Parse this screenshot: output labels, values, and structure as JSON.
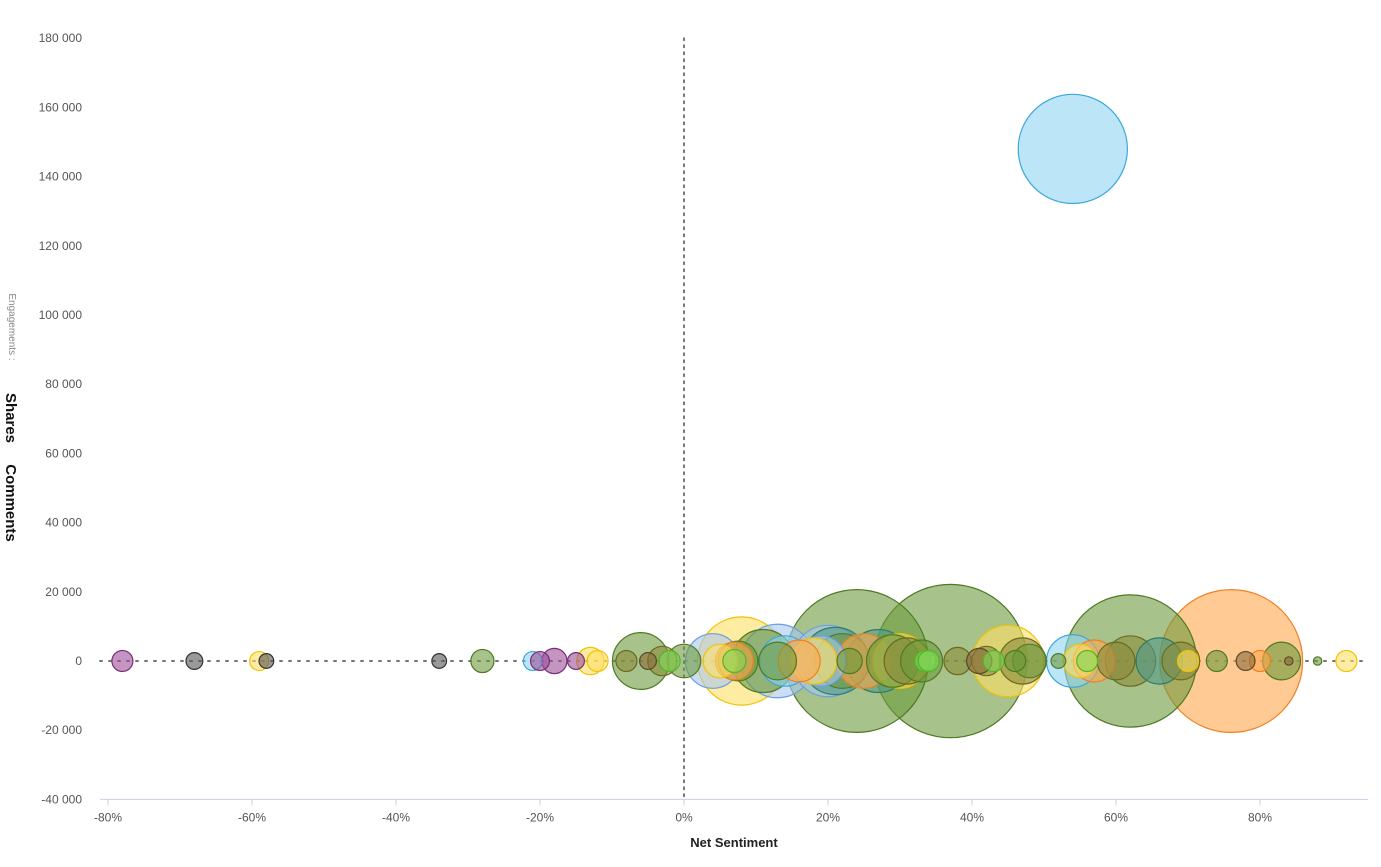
{
  "chart_data": {
    "type": "scatter",
    "subtype": "bubble",
    "title": "",
    "xlabel": "Net Sentiment",
    "ylabel_prefix": "Engagements :",
    "ylabel_options": [
      "Shares",
      "Comments"
    ],
    "xlim": [
      -80,
      95
    ],
    "ylim": [
      -40000,
      180000
    ],
    "x_ticks": [
      -80,
      -60,
      -40,
      -20,
      0,
      20,
      40,
      60,
      80
    ],
    "x_tick_labels": [
      "-80%",
      "-60%",
      "-40%",
      "-20%",
      "0%",
      "20%",
      "40%",
      "60%",
      "80%"
    ],
    "y_ticks": [
      180000,
      160000,
      140000,
      120000,
      100000,
      80000,
      60000,
      40000,
      20000,
      0,
      -20000,
      -40000
    ],
    "y_tick_labels": [
      "180 000",
      "160 000",
      "140 000",
      "120 000",
      "100 000",
      "80 000",
      "60 000",
      "40 000",
      "20 000",
      "0",
      "-20 000",
      "-40 000"
    ],
    "grid": false,
    "reference_lines": {
      "x": 0,
      "y": 0,
      "style": "dotted"
    },
    "colors": {
      "blue": "#8fd3f4",
      "blue_stroke": "#3aa8dd",
      "green": "#6d9a3c",
      "green_stroke": "#4e7a22",
      "orange": "#ffa64d",
      "orange_stroke": "#f08020",
      "yellow": "#ffe066",
      "yellow_stroke": "#f2c200",
      "purple": "#9b4f96",
      "purple_stroke": "#7a2d78",
      "gray": "#555555",
      "gray_stroke": "#333333",
      "lightblue": "#a8c8f0",
      "lightblue_stroke": "#6a9fe0",
      "teal": "#4f9a8a",
      "teal_stroke": "#2f7a6a",
      "lime": "#7ed957",
      "lime_stroke": "#52b52a",
      "olive": "#8a8a3a",
      "olive_stroke": "#6a6a20",
      "brown": "#8a6a3a",
      "brown_stroke": "#5a4a2a"
    },
    "bubbles": [
      {
        "x": -78,
        "y": 0,
        "size": 1,
        "color": "purple"
      },
      {
        "x": -68,
        "y": 0,
        "size": 0.8,
        "color": "gray"
      },
      {
        "x": -59,
        "y": 0,
        "size": 0.9,
        "color": "yellow"
      },
      {
        "x": -58,
        "y": 0,
        "size": 0.7,
        "color": "gray"
      },
      {
        "x": -34,
        "y": 0,
        "size": 0.7,
        "color": "gray"
      },
      {
        "x": -28,
        "y": 0,
        "size": 1.1,
        "color": "green"
      },
      {
        "x": -21,
        "y": 0,
        "size": 0.9,
        "color": "blue"
      },
      {
        "x": -20,
        "y": 0,
        "size": 0.9,
        "color": "purple"
      },
      {
        "x": -18,
        "y": 0,
        "size": 1.2,
        "color": "purple"
      },
      {
        "x": -15,
        "y": 0,
        "size": 0.8,
        "color": "purple"
      },
      {
        "x": -13,
        "y": 0,
        "size": 1.3,
        "color": "yellow"
      },
      {
        "x": -12,
        "y": 0,
        "size": 1.0,
        "color": "yellow"
      },
      {
        "x": -8,
        "y": 0,
        "size": 1.0,
        "color": "olive"
      },
      {
        "x": -6,
        "y": 0,
        "size": 2.7,
        "color": "green"
      },
      {
        "x": -5,
        "y": 0,
        "size": 0.8,
        "color": "brown"
      },
      {
        "x": -3,
        "y": 0,
        "size": 1.4,
        "color": "olive"
      },
      {
        "x": -2,
        "y": 0,
        "size": 1.0,
        "color": "lime"
      },
      {
        "x": 0,
        "y": 0,
        "size": 1.6,
        "color": "green"
      },
      {
        "x": 4,
        "y": 0,
        "size": 2.6,
        "color": "lightblue"
      },
      {
        "x": 5,
        "y": 0,
        "size": 1.6,
        "color": "yellow"
      },
      {
        "x": 7,
        "y": 0,
        "size": 1.8,
        "color": "orange"
      },
      {
        "x": 8,
        "y": 0,
        "size": 4.2,
        "color": "yellow"
      },
      {
        "x": 7,
        "y": 0,
        "size": 1.1,
        "color": "lime"
      },
      {
        "x": 7.5,
        "y": 0,
        "size": 1.9,
        "color": "green"
      },
      {
        "x": 11,
        "y": 0,
        "size": 3.0,
        "color": "green"
      },
      {
        "x": 13,
        "y": 0,
        "size": 3.5,
        "color": "lightblue"
      },
      {
        "x": 14,
        "y": 0,
        "size": 2.4,
        "color": "blue"
      },
      {
        "x": 13,
        "y": 0,
        "size": 1.8,
        "color": "green"
      },
      {
        "x": 16,
        "y": 0,
        "size": 2.0,
        "color": "orange"
      },
      {
        "x": 18,
        "y": 0,
        "size": 2.2,
        "color": "yellow"
      },
      {
        "x": 19,
        "y": 0,
        "size": 2.4,
        "color": "lightblue"
      },
      {
        "x": 20,
        "y": 0,
        "size": 3.4,
        "color": "lightblue"
      },
      {
        "x": 21,
        "y": 0,
        "size": 3.2,
        "color": "teal"
      },
      {
        "x": 22,
        "y": 0,
        "size": 2.6,
        "color": "green"
      },
      {
        "x": 24,
        "y": 0,
        "size": 6.8,
        "color": "green"
      },
      {
        "x": 23,
        "y": 0,
        "size": 1.2,
        "color": "green"
      },
      {
        "x": 25,
        "y": 0,
        "size": 2.6,
        "color": "orange"
      },
      {
        "x": 27,
        "y": 0,
        "size": 3.0,
        "color": "teal"
      },
      {
        "x": 29,
        "y": 0,
        "size": 2.5,
        "color": "green"
      },
      {
        "x": 30,
        "y": 0,
        "size": 2.6,
        "color": "yellow"
      },
      {
        "x": 31,
        "y": 0,
        "size": 2.2,
        "color": "olive"
      },
      {
        "x": 33,
        "y": 0,
        "size": 2.0,
        "color": "green"
      },
      {
        "x": 33.5,
        "y": 0,
        "size": 1.0,
        "color": "lime"
      },
      {
        "x": 34,
        "y": 0,
        "size": 1.0,
        "color": "lime"
      },
      {
        "x": 37,
        "y": 0,
        "size": 7.3,
        "color": "green"
      },
      {
        "x": 38,
        "y": 0,
        "size": 1.3,
        "color": "olive"
      },
      {
        "x": 41,
        "y": 0,
        "size": 1.2,
        "color": "brown"
      },
      {
        "x": 42,
        "y": 0,
        "size": 1.4,
        "color": "olive"
      },
      {
        "x": 43,
        "y": 0,
        "size": 1.0,
        "color": "lime"
      },
      {
        "x": 45,
        "y": 0,
        "size": 3.4,
        "color": "yellow"
      },
      {
        "x": 46,
        "y": 0,
        "size": 1.0,
        "color": "green"
      },
      {
        "x": 47,
        "y": 0,
        "size": 2.2,
        "color": "olive"
      },
      {
        "x": 48,
        "y": 0,
        "size": 1.6,
        "color": "green"
      },
      {
        "x": 52,
        "y": 0,
        "size": 0.7,
        "color": "green"
      },
      {
        "x": 54,
        "y": 0,
        "size": 2.5,
        "color": "blue"
      },
      {
        "x": 54,
        "y": 148000,
        "size": 5.2,
        "color": "blue"
      },
      {
        "x": 55,
        "y": 0,
        "size": 1.6,
        "color": "yellow"
      },
      {
        "x": 56,
        "y": 0,
        "size": 1.0,
        "color": "lime"
      },
      {
        "x": 57,
        "y": 0,
        "size": 2.0,
        "color": "orange"
      },
      {
        "x": 60,
        "y": 0,
        "size": 1.8,
        "color": "olive"
      },
      {
        "x": 62,
        "y": 0,
        "size": 6.3,
        "color": "green"
      },
      {
        "x": 62,
        "y": 0,
        "size": 2.4,
        "color": "olive"
      },
      {
        "x": 66,
        "y": 0,
        "size": 2.2,
        "color": "teal"
      },
      {
        "x": 69,
        "y": 0,
        "size": 1.8,
        "color": "olive"
      },
      {
        "x": 70,
        "y": 0,
        "size": 1.0,
        "color": "yellow"
      },
      {
        "x": 74,
        "y": 0,
        "size": 1.0,
        "color": "green"
      },
      {
        "x": 76,
        "y": 0,
        "size": 6.8,
        "color": "orange"
      },
      {
        "x": 78,
        "y": 0,
        "size": 0.9,
        "color": "brown"
      },
      {
        "x": 80,
        "y": 0,
        "size": 1.0,
        "color": "orange"
      },
      {
        "x": 83,
        "y": 0,
        "size": 1.8,
        "color": "green"
      },
      {
        "x": 84,
        "y": 0,
        "size": 0.4,
        "color": "brown"
      },
      {
        "x": 88,
        "y": 0,
        "size": 0.4,
        "color": "green"
      },
      {
        "x": 92,
        "y": 0,
        "size": 1.0,
        "color": "yellow"
      }
    ]
  }
}
